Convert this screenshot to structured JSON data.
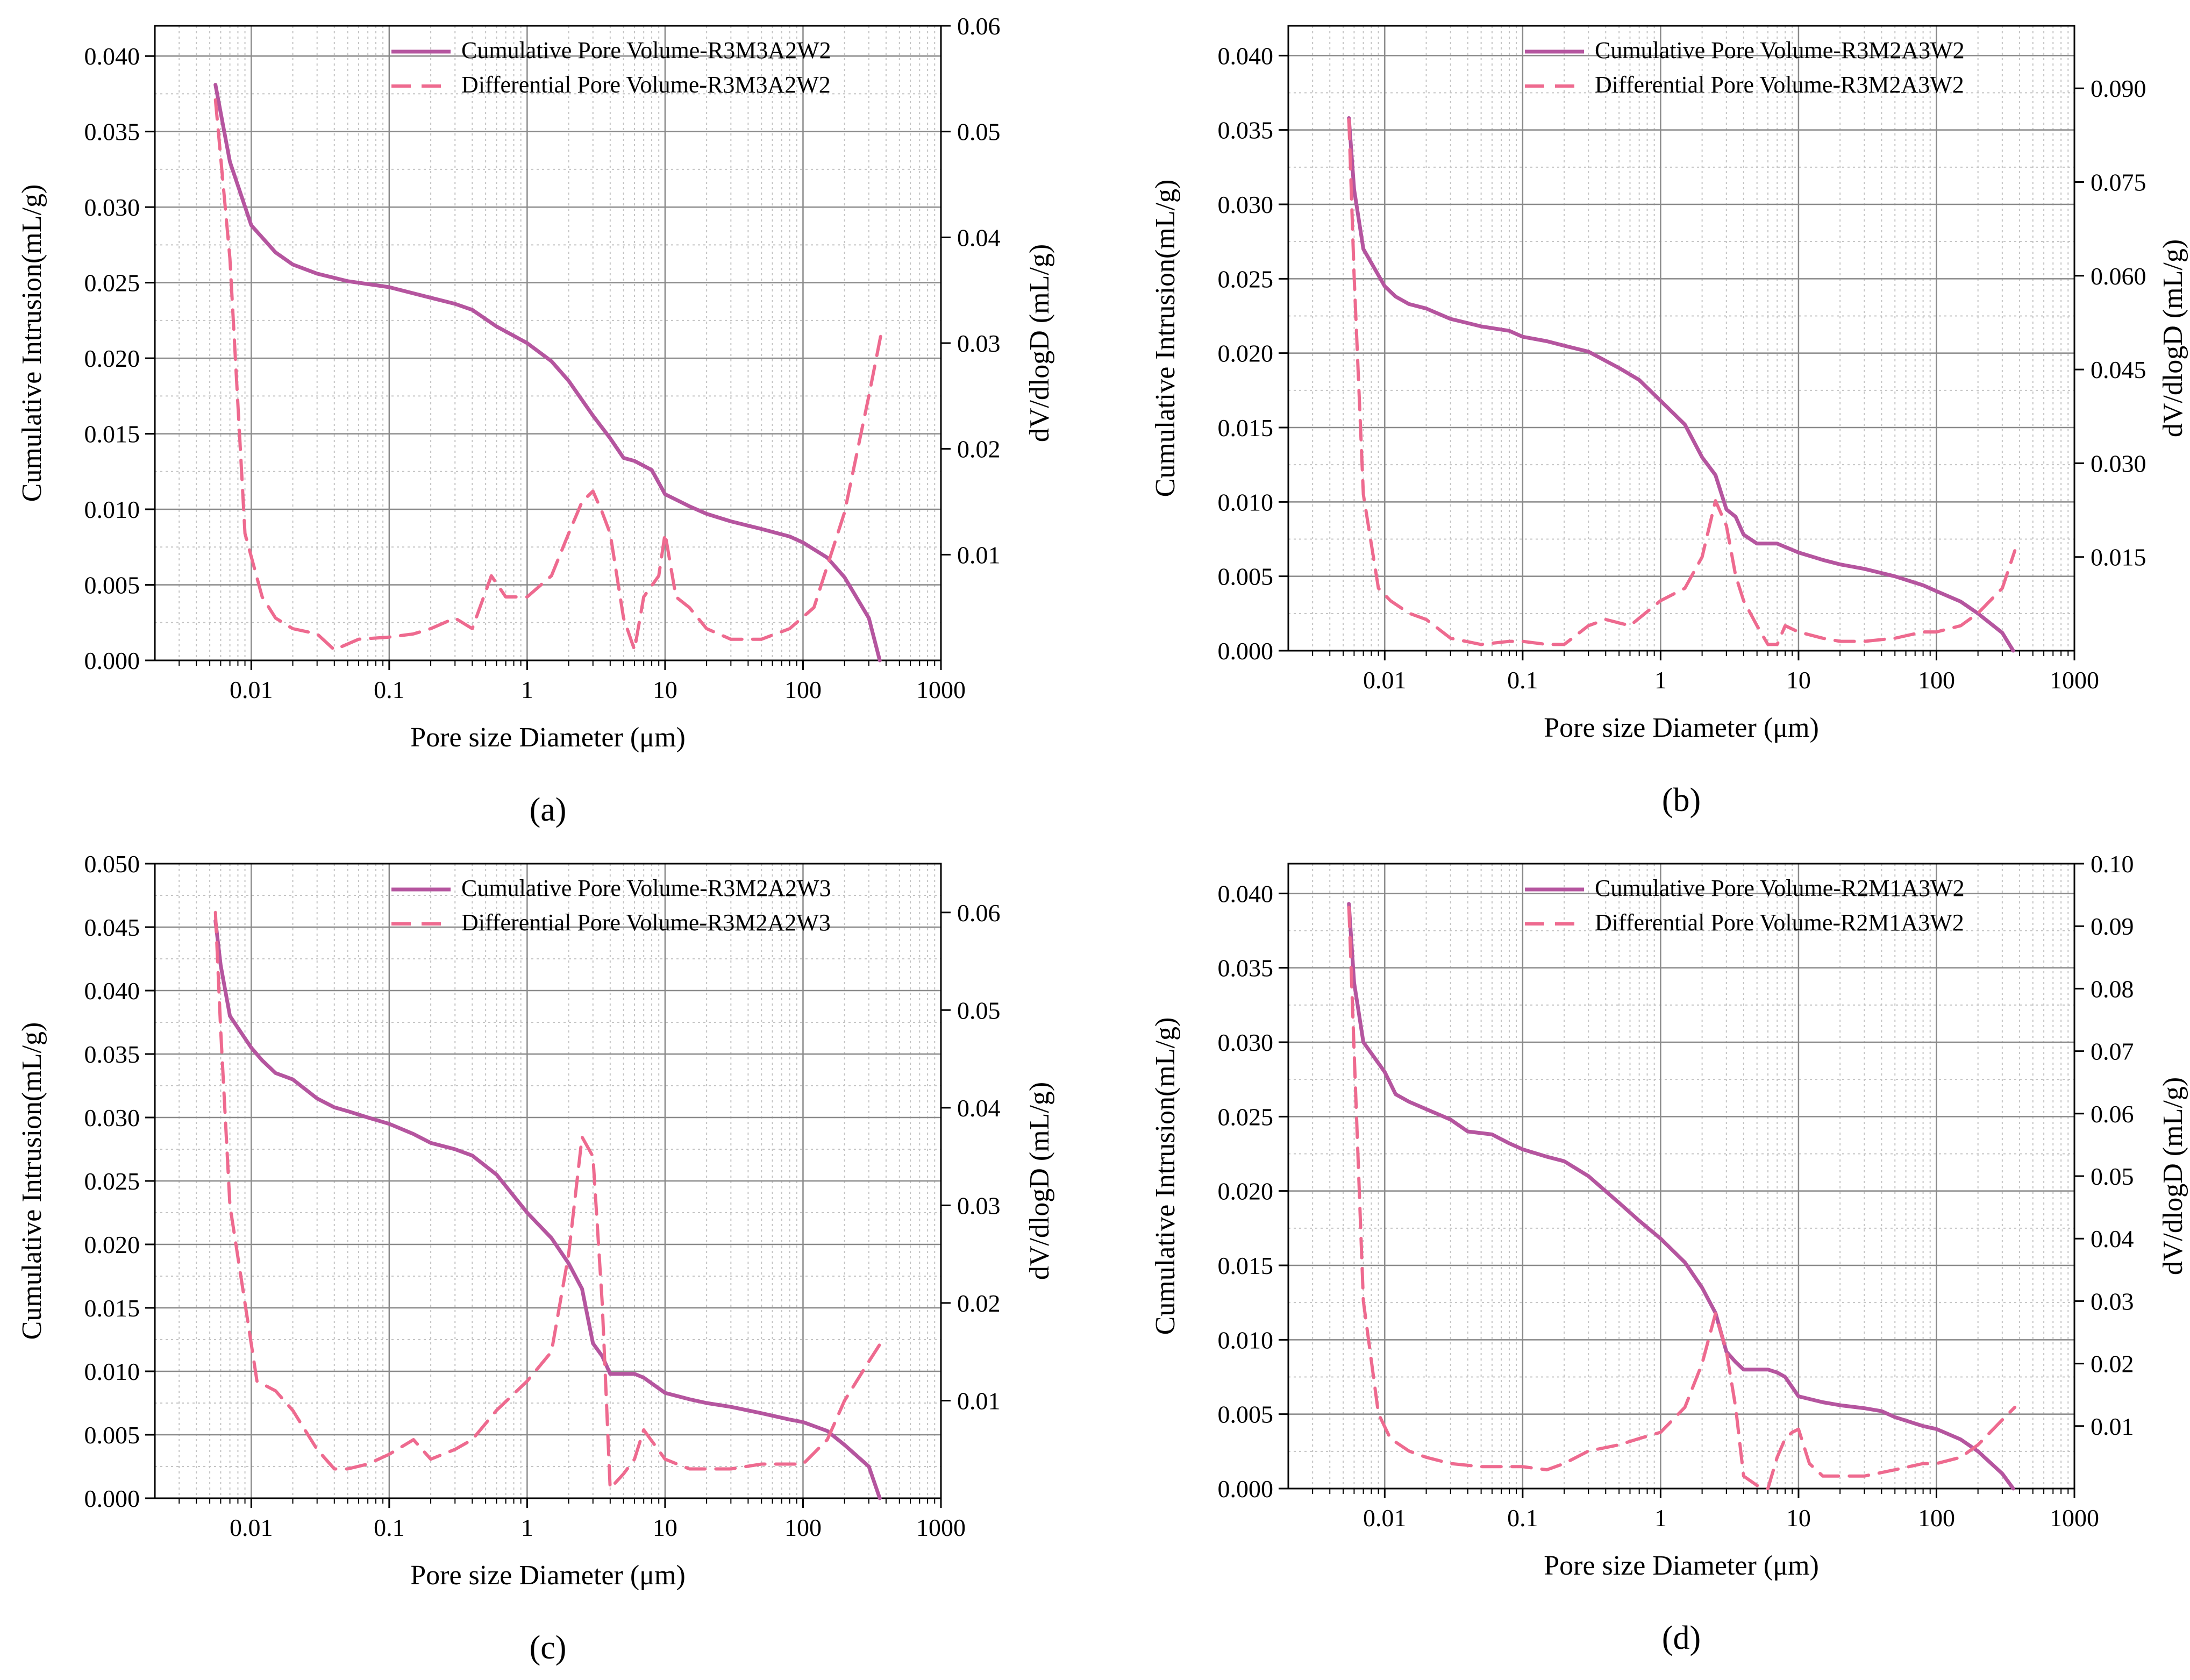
{
  "colors": {
    "cumulative": "#b5559f",
    "differential": "#ee6a8f",
    "grid_major": "#8a8a8a",
    "grid_minor": "#c4c4c4",
    "axis": "#000000"
  },
  "chart_data": [
    {
      "type": "line",
      "panel_label": "(a)",
      "xlabel": "Pore size Diameter (μm)",
      "ylabel_left": "Cumulative Intrusion(mL/g)",
      "ylabel_right": "dV/dlogD (mL/g)",
      "xscale": "log",
      "xlim": [
        0.002,
        1000
      ],
      "xticks": [
        0.01,
        0.1,
        1,
        10,
        100,
        1000
      ],
      "xtick_labels": [
        "0.01",
        "0.1",
        "1",
        "10",
        "100",
        "1000"
      ],
      "ylim_left": [
        0,
        0.042
      ],
      "yticks_left": [
        0.0,
        0.005,
        0.01,
        0.015,
        0.02,
        0.025,
        0.03,
        0.035,
        0.04
      ],
      "ytick_labels_left": [
        "0.000",
        "0.005",
        "0.010",
        "0.015",
        "0.020",
        "0.025",
        "0.030",
        "0.035",
        "0.040"
      ],
      "ylim_right": [
        0,
        0.06
      ],
      "yticks_right": [
        0.01,
        0.02,
        0.03,
        0.04,
        0.05,
        0.06
      ],
      "ytick_labels_right": [
        "0.01",
        "0.02",
        "0.03",
        "0.04",
        "0.05",
        "0.06"
      ],
      "legend_position": "top-right",
      "series": [
        {
          "name": "Cumulative Pore Volume-R3M3A2W2",
          "axis": "left",
          "style": "solid",
          "x": [
            0.0055,
            0.007,
            0.01,
            0.015,
            0.02,
            0.03,
            0.05,
            0.1,
            0.2,
            0.3,
            0.4,
            0.6,
            1,
            1.5,
            2,
            3,
            4,
            5,
            6,
            8,
            10,
            15,
            20,
            30,
            50,
            80,
            100,
            150,
            200,
            300,
            360
          ],
          "values": [
            0.0381,
            0.033,
            0.0288,
            0.027,
            0.0262,
            0.0256,
            0.0251,
            0.0247,
            0.024,
            0.0236,
            0.0232,
            0.0221,
            0.021,
            0.0198,
            0.0185,
            0.0162,
            0.0147,
            0.0134,
            0.0132,
            0.0126,
            0.011,
            0.0102,
            0.0097,
            0.0092,
            0.0087,
            0.0082,
            0.0078,
            0.0068,
            0.0055,
            0.0028,
            0.0
          ]
        },
        {
          "name": "Differential Pore Volume-R3M3A2W2",
          "axis": "right",
          "style": "dashed",
          "x": [
            0.0055,
            0.007,
            0.009,
            0.012,
            0.015,
            0.02,
            0.03,
            0.04,
            0.06,
            0.1,
            0.15,
            0.2,
            0.3,
            0.4,
            0.55,
            0.7,
            1,
            1.5,
            2,
            2.5,
            3,
            3.5,
            4,
            5,
            6,
            7,
            9,
            10,
            12,
            15,
            20,
            30,
            50,
            80,
            120,
            200,
            300,
            370
          ],
          "values": [
            0.053,
            0.038,
            0.012,
            0.006,
            0.004,
            0.003,
            0.0025,
            0.001,
            0.002,
            0.0022,
            0.0025,
            0.003,
            0.004,
            0.003,
            0.008,
            0.006,
            0.006,
            0.008,
            0.012,
            0.015,
            0.016,
            0.014,
            0.012,
            0.004,
            0.001,
            0.006,
            0.008,
            0.012,
            0.006,
            0.005,
            0.003,
            0.002,
            0.002,
            0.003,
            0.005,
            0.014,
            0.025,
            0.031
          ]
        }
      ]
    },
    {
      "type": "line",
      "panel_label": "(b)",
      "xlabel": "Pore size Diameter (μm)",
      "ylabel_left": "Cumulative Intrusion(mL/g)",
      "ylabel_right": "dV/dlogD (mL/g)",
      "xscale": "log",
      "xlim": [
        0.002,
        1000
      ],
      "xticks": [
        0.01,
        0.1,
        1,
        10,
        100,
        1000
      ],
      "xtick_labels": [
        "0.01",
        "0.1",
        "1",
        "10",
        "100",
        "1000"
      ],
      "ylim_left": [
        0,
        0.042
      ],
      "yticks_left": [
        0.0,
        0.005,
        0.01,
        0.015,
        0.02,
        0.025,
        0.03,
        0.035,
        0.04
      ],
      "ytick_labels_left": [
        "0.000",
        "0.005",
        "0.010",
        "0.015",
        "0.020",
        "0.025",
        "0.030",
        "0.035",
        "0.040"
      ],
      "ylim_right": [
        0,
        0.1
      ],
      "yticks_right": [
        0.015,
        0.03,
        0.045,
        0.06,
        0.075,
        0.09
      ],
      "ytick_labels_right": [
        "0.015",
        "0.030",
        "0.045",
        "0.060",
        "0.075",
        "0.090"
      ],
      "legend_position": "top-right",
      "series": [
        {
          "name": "Cumulative Pore Volume-R3M2A3W2",
          "axis": "left",
          "style": "solid",
          "x": [
            0.0055,
            0.006,
            0.007,
            0.01,
            0.012,
            0.015,
            0.02,
            0.03,
            0.05,
            0.08,
            0.1,
            0.15,
            0.2,
            0.3,
            0.5,
            0.7,
            1,
            1.5,
            2,
            2.5,
            3,
            3.5,
            4,
            5,
            7,
            10,
            15,
            20,
            30,
            50,
            80,
            100,
            150,
            200,
            300,
            360
          ],
          "values": [
            0.0358,
            0.031,
            0.027,
            0.0245,
            0.0238,
            0.0233,
            0.023,
            0.0223,
            0.0218,
            0.0215,
            0.0211,
            0.0208,
            0.0205,
            0.0201,
            0.019,
            0.0182,
            0.0168,
            0.0152,
            0.013,
            0.0118,
            0.0095,
            0.009,
            0.0078,
            0.0072,
            0.0072,
            0.0066,
            0.0061,
            0.0058,
            0.0055,
            0.005,
            0.0044,
            0.004,
            0.0033,
            0.0025,
            0.0012,
            0.0
          ]
        },
        {
          "name": "Differential Pore Volume-R3M2A3W2",
          "axis": "right",
          "style": "dashed",
          "x": [
            0.0055,
            0.006,
            0.007,
            0.009,
            0.011,
            0.015,
            0.02,
            0.03,
            0.05,
            0.08,
            0.1,
            0.15,
            0.2,
            0.3,
            0.4,
            0.6,
            1,
            1.5,
            2,
            2.5,
            3,
            3.5,
            4,
            5,
            6,
            7,
            8,
            10,
            15,
            20,
            30,
            50,
            80,
            100,
            150,
            200,
            300,
            370
          ],
          "values": [
            0.085,
            0.06,
            0.025,
            0.01,
            0.008,
            0.006,
            0.005,
            0.002,
            0.001,
            0.0015,
            0.0015,
            0.001,
            0.001,
            0.004,
            0.005,
            0.004,
            0.008,
            0.01,
            0.015,
            0.024,
            0.02,
            0.012,
            0.008,
            0.004,
            0.001,
            0.001,
            0.004,
            0.003,
            0.002,
            0.0015,
            0.0015,
            0.002,
            0.003,
            0.003,
            0.004,
            0.006,
            0.01,
            0.016
          ]
        }
      ]
    },
    {
      "type": "line",
      "panel_label": "(c)",
      "xlabel": "Pore size Diameter (μm)",
      "ylabel_left": "Cumulative Intrusion(mL/g)",
      "ylabel_right": "dV/dlogD (mL/g)",
      "xscale": "log",
      "xlim": [
        0.002,
        1000
      ],
      "xticks": [
        0.01,
        0.1,
        1,
        10,
        100,
        1000
      ],
      "xtick_labels": [
        "0.01",
        "0.1",
        "1",
        "10",
        "100",
        "1000"
      ],
      "ylim_left": [
        0,
        0.05
      ],
      "yticks_left": [
        0.0,
        0.005,
        0.01,
        0.015,
        0.02,
        0.025,
        0.03,
        0.035,
        0.04,
        0.045,
        0.05
      ],
      "ytick_labels_left": [
        "0.000",
        "0.005",
        "0.010",
        "0.015",
        "0.020",
        "0.025",
        "0.030",
        "0.035",
        "0.040",
        "0.045",
        "0.050"
      ],
      "ylim_right": [
        0,
        0.065
      ],
      "yticks_right": [
        0.01,
        0.02,
        0.03,
        0.04,
        0.05,
        0.06
      ],
      "ytick_labels_right": [
        "0.01",
        "0.02",
        "0.03",
        "0.04",
        "0.05",
        "0.06"
      ],
      "legend_position": "top-right",
      "series": [
        {
          "name": "Cumulative Pore Volume-R3M2A2W3",
          "axis": "left",
          "style": "solid",
          "x": [
            0.0055,
            0.006,
            0.007,
            0.01,
            0.012,
            0.015,
            0.02,
            0.03,
            0.04,
            0.05,
            0.07,
            0.1,
            0.15,
            0.2,
            0.3,
            0.4,
            0.6,
            1,
            1.5,
            2,
            2.5,
            3,
            3.5,
            4,
            5,
            6,
            7,
            10,
            15,
            20,
            30,
            50,
            80,
            100,
            150,
            200,
            300,
            360
          ],
          "values": [
            0.0455,
            0.042,
            0.038,
            0.0355,
            0.0345,
            0.0335,
            0.033,
            0.0315,
            0.0308,
            0.0305,
            0.03,
            0.0295,
            0.0287,
            0.028,
            0.0275,
            0.027,
            0.0255,
            0.0225,
            0.0205,
            0.0185,
            0.0165,
            0.0122,
            0.0112,
            0.0098,
            0.0098,
            0.0098,
            0.0095,
            0.0083,
            0.0078,
            0.0075,
            0.0072,
            0.0067,
            0.0062,
            0.006,
            0.0053,
            0.0042,
            0.0025,
            0.0
          ]
        },
        {
          "name": "Differential Pore Volume-R3M2A2W3",
          "axis": "right",
          "style": "dashed",
          "x": [
            0.0055,
            0.006,
            0.007,
            0.009,
            0.011,
            0.015,
            0.02,
            0.03,
            0.04,
            0.05,
            0.07,
            0.1,
            0.15,
            0.2,
            0.3,
            0.4,
            0.6,
            1,
            1.5,
            2,
            2.5,
            3,
            3.5,
            4,
            5,
            6,
            7,
            10,
            15,
            20,
            30,
            50,
            80,
            100,
            150,
            200,
            300,
            370
          ],
          "values": [
            0.06,
            0.048,
            0.03,
            0.02,
            0.012,
            0.011,
            0.009,
            0.005,
            0.003,
            0.003,
            0.0035,
            0.0045,
            0.006,
            0.004,
            0.005,
            0.006,
            0.009,
            0.012,
            0.015,
            0.025,
            0.037,
            0.035,
            0.02,
            0.001,
            0.0025,
            0.004,
            0.007,
            0.004,
            0.003,
            0.003,
            0.003,
            0.0035,
            0.0035,
            0.0035,
            0.006,
            0.01,
            0.014,
            0.016
          ]
        }
      ]
    },
    {
      "type": "line",
      "panel_label": "(d)",
      "xlabel": "Pore size Diameter (μm)",
      "ylabel_left": "Cumulative Intrusion(mL/g)",
      "ylabel_right": "dV/dlogD (mL/g)",
      "xscale": "log",
      "xlim": [
        0.002,
        1000
      ],
      "xticks": [
        0.01,
        0.1,
        1,
        10,
        100,
        1000
      ],
      "xtick_labels": [
        "0.01",
        "0.1",
        "1",
        "10",
        "100",
        "1000"
      ],
      "ylim_left": [
        0,
        0.042
      ],
      "yticks_left": [
        0.0,
        0.005,
        0.01,
        0.015,
        0.02,
        0.025,
        0.03,
        0.035,
        0.04
      ],
      "ytick_labels_left": [
        "0.000",
        "0.005",
        "0.010",
        "0.015",
        "0.020",
        "0.025",
        "0.030",
        "0.035",
        "0.040"
      ],
      "ylim_right": [
        0,
        0.1
      ],
      "yticks_right": [
        0.01,
        0.02,
        0.03,
        0.04,
        0.05,
        0.06,
        0.07,
        0.08,
        0.09,
        0.1
      ],
      "ytick_labels_right": [
        "0.01",
        "0.02",
        "0.03",
        "0.04",
        "0.05",
        "0.06",
        "0.07",
        "0.08",
        "0.09",
        "0.10"
      ],
      "legend_position": "top-right",
      "series": [
        {
          "name": "Cumulative Pore Volume-R2M1A3W2",
          "axis": "left",
          "style": "solid",
          "x": [
            0.0055,
            0.006,
            0.007,
            0.01,
            0.012,
            0.015,
            0.02,
            0.03,
            0.04,
            0.06,
            0.08,
            0.1,
            0.15,
            0.2,
            0.3,
            0.5,
            0.7,
            1,
            1.5,
            2,
            2.5,
            3,
            3.5,
            4,
            5,
            6,
            7,
            8,
            10,
            15,
            20,
            30,
            40,
            50,
            80,
            100,
            150,
            200,
            300,
            360
          ],
          "values": [
            0.0393,
            0.034,
            0.03,
            0.028,
            0.0265,
            0.026,
            0.0255,
            0.0248,
            0.024,
            0.0238,
            0.0232,
            0.0228,
            0.0223,
            0.022,
            0.021,
            0.0192,
            0.018,
            0.0168,
            0.0152,
            0.0135,
            0.0118,
            0.0092,
            0.0085,
            0.008,
            0.008,
            0.008,
            0.0078,
            0.0075,
            0.0062,
            0.0058,
            0.0056,
            0.0054,
            0.0052,
            0.0048,
            0.0042,
            0.004,
            0.0033,
            0.0025,
            0.001,
            0.0
          ]
        },
        {
          "name": "Differential Pore Volume-R2M1A3W2",
          "axis": "right",
          "style": "dashed",
          "x": [
            0.0055,
            0.006,
            0.007,
            0.009,
            0.011,
            0.015,
            0.02,
            0.03,
            0.05,
            0.08,
            0.1,
            0.15,
            0.2,
            0.3,
            0.5,
            0.7,
            1,
            1.5,
            2,
            2.5,
            3,
            3.5,
            4,
            5,
            6,
            7,
            8,
            9,
            10,
            12,
            15,
            20,
            30,
            50,
            80,
            100,
            150,
            200,
            300,
            370
          ],
          "values": [
            0.093,
            0.07,
            0.03,
            0.012,
            0.008,
            0.006,
            0.005,
            0.004,
            0.0035,
            0.0035,
            0.0035,
            0.003,
            0.004,
            0.006,
            0.007,
            0.008,
            0.009,
            0.013,
            0.02,
            0.028,
            0.022,
            0.013,
            0.002,
            0.0005,
            0.0,
            0.005,
            0.008,
            0.009,
            0.0095,
            0.004,
            0.002,
            0.002,
            0.002,
            0.003,
            0.004,
            0.004,
            0.005,
            0.007,
            0.011,
            0.013
          ]
        }
      ]
    }
  ]
}
